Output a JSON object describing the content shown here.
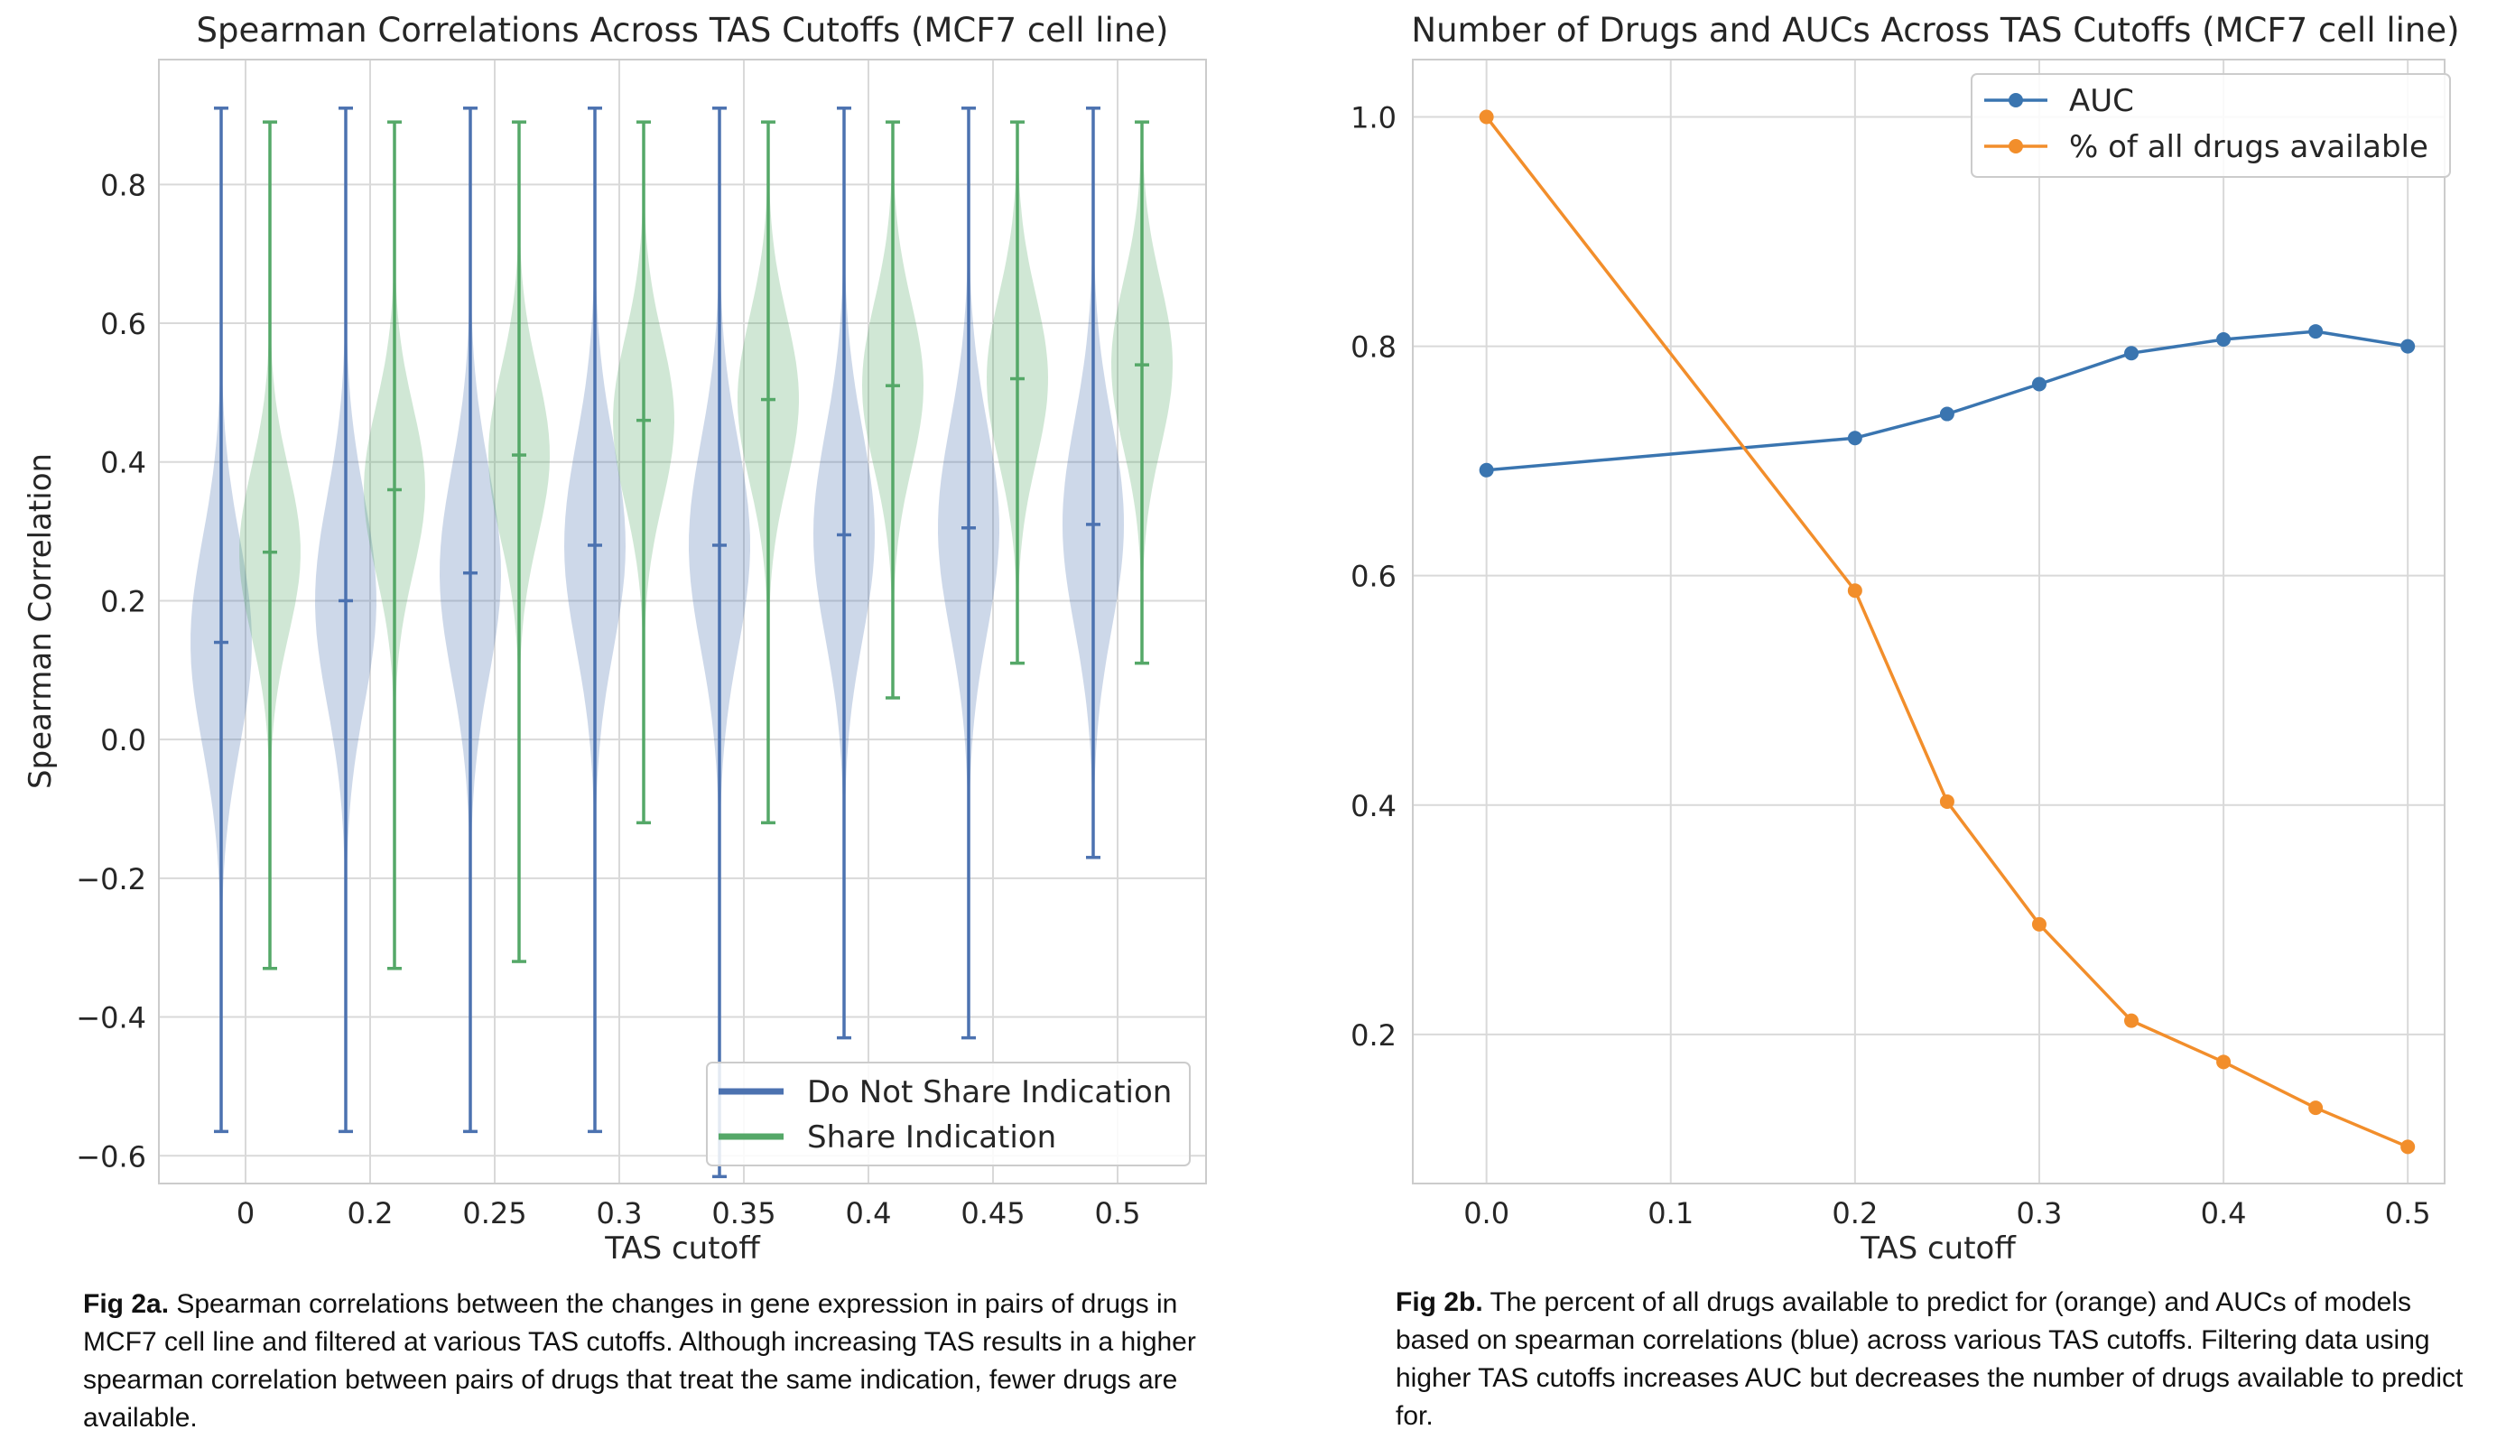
{
  "colors": {
    "do_not_share": "#4c72b0",
    "share": "#55a868",
    "auc": "#3a75b0",
    "drugs": "#f28e2b",
    "grid": "#d9d9d9",
    "axes_edge": "#cccccc"
  },
  "chart_data": [
    {
      "type": "violin",
      "title": "Spearman Correlations Across TAS Cutoffs (MCF7 cell line)",
      "xlabel": "TAS cutoff",
      "ylabel": "Spearman Correlation",
      "categories": [
        "0",
        "0.2",
        "0.25",
        "0.3",
        "0.35",
        "0.4",
        "0.45",
        "0.5"
      ],
      "ylim": [
        -0.64,
        0.98
      ],
      "yticks": [
        -0.6,
        -0.4,
        -0.2,
        0.0,
        0.2,
        0.4,
        0.6,
        0.8
      ],
      "ytick_labels": [
        "−0.6",
        "−0.4",
        "−0.2",
        "0.0",
        "0.2",
        "0.4",
        "0.6",
        "0.8"
      ],
      "grid": true,
      "legend_position": "bottom-right",
      "series": [
        {
          "name": "Do Not Share Indication",
          "color_key": "do_not_share",
          "min": [
            -0.565,
            -0.565,
            -0.565,
            -0.565,
            -0.63,
            -0.43,
            -0.43,
            -0.17
          ],
          "max": [
            0.91,
            0.91,
            0.91,
            0.91,
            0.91,
            0.91,
            0.91,
            0.91
          ],
          "median": [
            0.14,
            0.2,
            0.24,
            0.28,
            0.28,
            0.295,
            0.305,
            0.31
          ]
        },
        {
          "name": "Share Indication",
          "color_key": "share",
          "min": [
            -0.33,
            -0.33,
            -0.32,
            -0.12,
            -0.12,
            0.06,
            0.11,
            0.11
          ],
          "max": [
            0.89,
            0.89,
            0.89,
            0.89,
            0.89,
            0.89,
            0.89,
            0.89
          ],
          "median": [
            0.27,
            0.36,
            0.41,
            0.46,
            0.49,
            0.51,
            0.52,
            0.54
          ]
        }
      ]
    },
    {
      "type": "line",
      "title": "Number of Drugs and AUCs Across TAS Cutoffs (MCF7 cell line)",
      "xlabel": "TAS cutoff",
      "ylabel": "",
      "x": [
        0.0,
        0.2,
        0.25,
        0.3,
        0.35,
        0.4,
        0.45,
        0.5
      ],
      "xlim": [
        -0.04,
        0.52
      ],
      "ylim": [
        0.07,
        1.05
      ],
      "xticks": [
        0.0,
        0.1,
        0.2,
        0.3,
        0.4,
        0.5
      ],
      "xtick_labels": [
        "0.0",
        "0.1",
        "0.2",
        "0.3",
        "0.4",
        "0.5"
      ],
      "yticks": [
        0.2,
        0.4,
        0.6,
        0.8,
        1.0
      ],
      "ytick_labels": [
        "0.2",
        "0.4",
        "0.6",
        "0.8",
        "1.0"
      ],
      "grid": true,
      "legend_position": "top-right",
      "series": [
        {
          "name": "AUC",
          "color_key": "auc",
          "values": [
            0.692,
            0.72,
            0.741,
            0.767,
            0.794,
            0.806,
            0.813,
            0.8
          ]
        },
        {
          "name": "% of all drugs available",
          "color_key": "drugs",
          "values": [
            1.0,
            0.587,
            0.403,
            0.296,
            0.212,
            0.176,
            0.136,
            0.102
          ]
        }
      ]
    }
  ],
  "captions": {
    "a": {
      "label": "Fig 2a.",
      "text": " Spearman correlations between the changes in gene expression in pairs of drugs in MCF7 cell line and filtered at various TAS cutoffs. Although increasing TAS results in a higher spearman correlation between pairs of drugs that treat the same indication, fewer drugs are available."
    },
    "b": {
      "label": "Fig 2b.",
      "text": " The percent of all drugs available to predict for (orange) and AUCs of models based on spearman correlations (blue) across various TAS cutoffs. Filtering data using higher TAS cutoffs increases AUC but decreases the number of drugs available to predict for."
    }
  }
}
